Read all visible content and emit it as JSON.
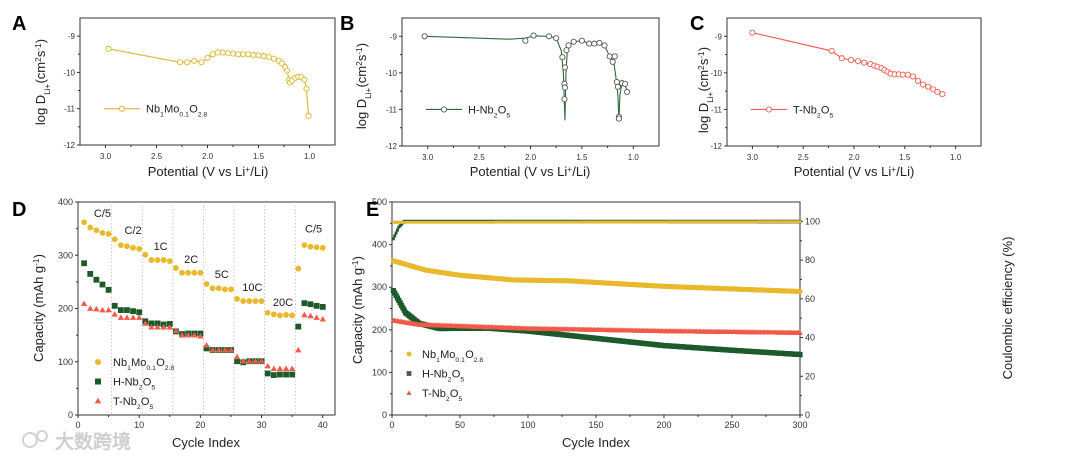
{
  "watermark": "大数跨境",
  "chart_data": [
    {
      "panel": "A",
      "type": "line",
      "xlabel": [
        {
          "t": "Potential (V vs Li"
        },
        {
          "t": "+",
          "s": "sup"
        },
        {
          "t": "/Li)"
        }
      ],
      "ylabel": [
        {
          "t": "log D"
        },
        {
          "t": "Li+",
          "s": "sub"
        },
        {
          "t": " (cm"
        },
        {
          "t": "2",
          "s": "sup"
        },
        {
          "t": " s"
        },
        {
          "t": "-1",
          "s": "sup"
        },
        {
          "t": ")"
        }
      ],
      "xlim": [
        3.25,
        0.75
      ],
      "ylim": [
        -12,
        -8.5
      ],
      "xticks": [
        "3.0",
        "2.5",
        "2.0",
        "1.5",
        "1.0"
      ],
      "yticks": [
        "-9",
        "-10",
        "-11",
        "-12"
      ],
      "color": "#e0b42e",
      "legend": [
        {
          "t": "Nb"
        },
        {
          "t": "1",
          "s": "sub"
        },
        {
          "t": "Mo"
        },
        {
          "t": "0.1",
          "s": "sub"
        },
        {
          "t": "O"
        },
        {
          "t": "2.8",
          "s": "sub"
        }
      ],
      "points": [
        [
          2.97,
          -9.35
        ],
        [
          2.27,
          -9.72
        ],
        [
          2.2,
          -9.72
        ],
        [
          2.13,
          -9.68
        ],
        [
          2.06,
          -9.72
        ],
        [
          2.0,
          -9.6
        ],
        [
          1.95,
          -9.5
        ],
        [
          1.9,
          -9.45
        ],
        [
          1.85,
          -9.45
        ],
        [
          1.8,
          -9.47
        ],
        [
          1.75,
          -9.48
        ],
        [
          1.7,
          -9.5
        ],
        [
          1.65,
          -9.5
        ],
        [
          1.6,
          -9.5
        ],
        [
          1.55,
          -9.52
        ],
        [
          1.5,
          -9.53
        ],
        [
          1.45,
          -9.55
        ],
        [
          1.4,
          -9.57
        ],
        [
          1.35,
          -9.62
        ],
        [
          1.3,
          -9.68
        ],
        [
          1.27,
          -9.75
        ],
        [
          1.24,
          -9.85
        ],
        [
          1.22,
          -9.95
        ],
        [
          1.2,
          -10.2
        ],
        [
          1.19,
          -10.28
        ],
        [
          1.17,
          -10.22
        ],
        [
          1.14,
          -10.15
        ],
        [
          1.11,
          -10.12
        ],
        [
          1.08,
          -10.13
        ],
        [
          1.05,
          -10.2
        ],
        [
          1.03,
          -10.45
        ],
        [
          1.01,
          -11.2
        ]
      ]
    },
    {
      "panel": "B",
      "type": "line",
      "xlabel": [
        {
          "t": "Potential (V vs Li"
        },
        {
          "t": "+",
          "s": "sup"
        },
        {
          "t": "/Li)"
        }
      ],
      "ylabel": [
        {
          "t": "log D"
        },
        {
          "t": "Li+",
          "s": "sub"
        },
        {
          "t": " (cm"
        },
        {
          "t": "2",
          "s": "sup"
        },
        {
          "t": " s"
        },
        {
          "t": "-1",
          "s": "sup"
        },
        {
          "t": ")"
        }
      ],
      "xlim": [
        3.25,
        0.75
      ],
      "ylim": [
        -12,
        -8.5
      ],
      "xticks": [
        "3.0",
        "2.5",
        "2.0",
        "1.5",
        "1.0"
      ],
      "yticks": [
        "-9",
        "-10",
        "-11",
        "-12"
      ],
      "color": "#2e6b38",
      "legend": [
        {
          "t": "H-Nb"
        },
        {
          "t": "2",
          "s": "sub"
        },
        {
          "t": "O"
        },
        {
          "t": "5",
          "s": "sub"
        }
      ],
      "line": [
        [
          3.03,
          -9.0
        ],
        [
          2.2,
          -9.08
        ],
        [
          2.05,
          -9.05
        ],
        [
          1.97,
          -8.99
        ],
        [
          1.82,
          -9.0
        ],
        [
          1.75,
          -9.05
        ],
        [
          1.7,
          -9.4
        ],
        [
          1.68,
          -10.0
        ],
        [
          1.665,
          -11.3
        ],
        [
          1.655,
          -10.0
        ],
        [
          1.64,
          -9.3
        ],
        [
          1.58,
          -9.15
        ],
        [
          1.5,
          -9.12
        ],
        [
          1.43,
          -9.2
        ],
        [
          1.33,
          -9.18
        ],
        [
          1.28,
          -9.25
        ],
        [
          1.23,
          -9.55
        ],
        [
          1.19,
          -9.7
        ],
        [
          1.17,
          -10.1
        ],
        [
          1.15,
          -10.6
        ],
        [
          1.14,
          -11.3
        ],
        [
          1.13,
          -10.6
        ],
        [
          1.11,
          -10.28
        ],
        [
          1.08,
          -10.32
        ],
        [
          1.06,
          -10.52
        ]
      ],
      "points": [
        [
          3.03,
          -9.0
        ],
        [
          2.05,
          -9.12
        ],
        [
          1.97,
          -8.98
        ],
        [
          1.82,
          -9.0
        ],
        [
          1.75,
          -9.05
        ],
        [
          1.69,
          -9.57
        ],
        [
          1.67,
          -10.72
        ],
        [
          1.67,
          -10.3
        ],
        [
          1.665,
          -10.4
        ],
        [
          1.665,
          -9.85
        ],
        [
          1.65,
          -9.38
        ],
        [
          1.63,
          -9.25
        ],
        [
          1.58,
          -9.15
        ],
        [
          1.5,
          -9.12
        ],
        [
          1.43,
          -9.2
        ],
        [
          1.38,
          -9.2
        ],
        [
          1.33,
          -9.18
        ],
        [
          1.28,
          -9.25
        ],
        [
          1.23,
          -9.55
        ],
        [
          1.2,
          -9.7
        ],
        [
          1.18,
          -9.55
        ],
        [
          1.16,
          -10.25
        ],
        [
          1.15,
          -10.38
        ],
        [
          1.14,
          -11.2
        ],
        [
          1.14,
          -11.25
        ],
        [
          1.11,
          -10.28
        ],
        [
          1.08,
          -10.3
        ],
        [
          1.06,
          -10.52
        ]
      ]
    },
    {
      "panel": "C",
      "type": "line",
      "xlabel": [
        {
          "t": "Potential (V vs Li"
        },
        {
          "t": "+",
          "s": "sup"
        },
        {
          "t": "/Li)"
        }
      ],
      "ylabel": [
        {
          "t": "log D"
        },
        {
          "t": "Li+",
          "s": "sub"
        },
        {
          "t": " (cm"
        },
        {
          "t": "2",
          "s": "sup"
        },
        {
          "t": " s"
        },
        {
          "t": "-1",
          "s": "sup"
        },
        {
          "t": ")"
        }
      ],
      "xlim": [
        3.25,
        0.75
      ],
      "ylim": [
        -12,
        -8.5
      ],
      "xticks": [
        "3.0",
        "2.5",
        "2.0",
        "1.5",
        "1.0"
      ],
      "yticks": [
        "-9",
        "-10",
        "-11",
        "-12"
      ],
      "color": "#ee5a4c",
      "legend": [
        {
          "t": "T-Nb"
        },
        {
          "t": "2",
          "s": "sub"
        },
        {
          "t": "O"
        },
        {
          "t": "5",
          "s": "sub"
        }
      ],
      "points": [
        [
          3.0,
          -8.9
        ],
        [
          2.22,
          -9.4
        ],
        [
          2.12,
          -9.6
        ],
        [
          2.03,
          -9.65
        ],
        [
          1.96,
          -9.68
        ],
        [
          1.9,
          -9.72
        ],
        [
          1.84,
          -9.76
        ],
        [
          1.8,
          -9.8
        ],
        [
          1.77,
          -9.83
        ],
        [
          1.73,
          -9.87
        ],
        [
          1.7,
          -9.92
        ],
        [
          1.67,
          -9.97
        ],
        [
          1.64,
          -10.02
        ],
        [
          1.6,
          -10.04
        ],
        [
          1.56,
          -10.04
        ],
        [
          1.52,
          -10.05
        ],
        [
          1.47,
          -10.05
        ],
        [
          1.42,
          -10.1
        ],
        [
          1.37,
          -10.22
        ],
        [
          1.32,
          -10.32
        ],
        [
          1.27,
          -10.38
        ],
        [
          1.22,
          -10.45
        ],
        [
          1.18,
          -10.52
        ],
        [
          1.13,
          -10.58
        ]
      ]
    },
    {
      "panel": "D",
      "type": "scatter",
      "xlabel": [
        {
          "t": "Cycle Index"
        }
      ],
      "ylabel": [
        {
          "t": "Capacity (mAh g"
        },
        {
          "t": "-1",
          "s": "sup"
        },
        {
          "t": ")"
        }
      ],
      "xlim": [
        0,
        42
      ],
      "ylim": [
        0,
        400
      ],
      "xticks": [
        "0",
        "10",
        "20",
        "30",
        "40"
      ],
      "yticks": [
        "0",
        "100",
        "200",
        "300",
        "400"
      ],
      "rate_labels": [
        {
          "t": "C/5",
          "x": 4,
          "y": 372
        },
        {
          "t": "C/2",
          "x": 9,
          "y": 340
        },
        {
          "t": "1C",
          "x": 13.5,
          "y": 310
        },
        {
          "t": "2C",
          "x": 18.5,
          "y": 285
        },
        {
          "t": "5C",
          "x": 23.5,
          "y": 257
        },
        {
          "t": "10C",
          "x": 28.5,
          "y": 233
        },
        {
          "t": "20C",
          "x": 33.5,
          "y": 205
        },
        {
          "t": "C/5",
          "x": 38.5,
          "y": 343
        }
      ],
      "dividers": [
        5.5,
        10.5,
        15.5,
        20.5,
        25.5,
        30.5,
        35.5
      ],
      "series": [
        {
          "name": [
            {
              "t": "Nb"
            },
            {
              "t": "1",
              "s": "sub"
            },
            {
              "t": "Mo"
            },
            {
              "t": "0.1",
              "s": "sub"
            },
            {
              "t": "O"
            },
            {
              "t": "2.8",
              "s": "sub"
            }
          ],
          "color": "#e8b92a",
          "marker": "circle",
          "values": [
            362,
            352,
            347,
            342,
            340,
            330,
            319,
            317,
            314,
            312,
            301,
            291,
            291,
            291,
            289,
            276,
            267,
            267,
            267,
            267,
            246,
            238,
            238,
            236,
            236,
            218,
            214,
            214,
            214,
            214,
            192,
            189,
            187,
            188,
            187,
            275,
            319,
            316,
            315,
            314
          ]
        },
        {
          "name": [
            {
              "t": "H-Nb"
            },
            {
              "t": "2",
              "s": "sub"
            },
            {
              "t": "O"
            },
            {
              "t": "5",
              "s": "sub"
            }
          ],
          "color": "#1d5a2a",
          "marker": "square",
          "values": [
            285,
            265,
            254,
            245,
            235,
            205,
            197,
            197,
            195,
            193,
            176,
            172,
            172,
            170,
            171,
            157,
            152,
            153,
            153,
            153,
            125,
            122,
            122,
            122,
            122,
            101,
            99,
            101,
            101,
            101,
            78,
            75,
            76,
            76,
            76,
            166,
            210,
            208,
            205,
            203
          ]
        },
        {
          "name": [
            {
              "t": "T-Nb"
            },
            {
              "t": "2",
              "s": "sub"
            },
            {
              "t": "O"
            },
            {
              "t": "5",
              "s": "sub"
            }
          ],
          "color": "#f05a4a",
          "marker": "triangle",
          "values": [
            209,
            200,
            199,
            197,
            197,
            189,
            183,
            183,
            183,
            183,
            172,
            165,
            165,
            165,
            165,
            158,
            150,
            150,
            150,
            148,
            131,
            122,
            122,
            122,
            122,
            109,
            101,
            101,
            101,
            101,
            92,
            87,
            87,
            87,
            87,
            122,
            188,
            186,
            183,
            180
          ]
        }
      ]
    },
    {
      "panel": "E",
      "type": "scatter",
      "xlabel": [
        {
          "t": "Cycle Index"
        }
      ],
      "ylabel": [
        {
          "t": "Capacity (mAh g"
        },
        {
          "t": "-1",
          "s": "sup"
        },
        {
          "t": ")"
        }
      ],
      "y2label": [
        {
          "t": "Coulombic efficiency (%)"
        }
      ],
      "xlim": [
        0,
        300
      ],
      "ylim": [
        0,
        500
      ],
      "y2lim": [
        0,
        110
      ],
      "xticks": [
        "0",
        "50",
        "100",
        "150",
        "200",
        "250",
        "300"
      ],
      "yticks": [
        "0",
        "100",
        "200",
        "300",
        "400",
        "500"
      ],
      "y2ticks": [
        "0",
        "20",
        "40",
        "60",
        "80",
        "100"
      ],
      "series": [
        {
          "name": [
            {
              "t": "Nb"
            },
            {
              "t": "1",
              "s": "sub"
            },
            {
              "t": "Mo"
            },
            {
              "t": "0.1",
              "s": "sub"
            },
            {
              "t": "O"
            },
            {
              "t": "2.8",
              "s": "sub"
            }
          ],
          "color": "#e8b92a",
          "marker": "circle",
          "capacity_anchors": [
            [
              1,
              362
            ],
            [
              25,
              340
            ],
            [
              50,
              328
            ],
            [
              90,
              317
            ],
            [
              130,
              315
            ],
            [
              200,
              302
            ],
            [
              300,
              290
            ]
          ],
          "ce_anchors": [
            [
              1,
              99.5
            ],
            [
              300,
              99.8
            ]
          ]
        },
        {
          "name": [
            {
              "t": "H-Nb"
            },
            {
              "t": "2",
              "s": "sub"
            },
            {
              "t": "O"
            },
            {
              "t": "5",
              "s": "sub"
            }
          ],
          "color": "#1d5a2a",
          "marker": "square",
          "capacity_anchors": [
            [
              1,
              292
            ],
            [
              10,
              240
            ],
            [
              20,
              215
            ],
            [
              35,
              203
            ],
            [
              70,
              204
            ],
            [
              100,
              197
            ],
            [
              150,
              180
            ],
            [
              200,
              163
            ],
            [
              250,
              152
            ],
            [
              300,
              142
            ]
          ],
          "ce_anchors": [
            [
              1,
              91
            ],
            [
              5,
              97
            ],
            [
              9,
              100
            ],
            [
              300,
              100
            ]
          ]
        },
        {
          "name": [
            {
              "t": "T-Nb"
            },
            {
              "t": "2",
              "s": "sub"
            },
            {
              "t": "O"
            },
            {
              "t": "5",
              "s": "sub"
            }
          ],
          "color": "#f05a4a",
          "marker": "triangle",
          "capacity_anchors": [
            [
              1,
              222
            ],
            [
              20,
              212
            ],
            [
              100,
              203
            ],
            [
              200,
              197
            ],
            [
              300,
              193
            ]
          ],
          "ce_anchors": [
            [
              1,
              99.6
            ],
            [
              300,
              99.6
            ]
          ]
        }
      ]
    }
  ]
}
